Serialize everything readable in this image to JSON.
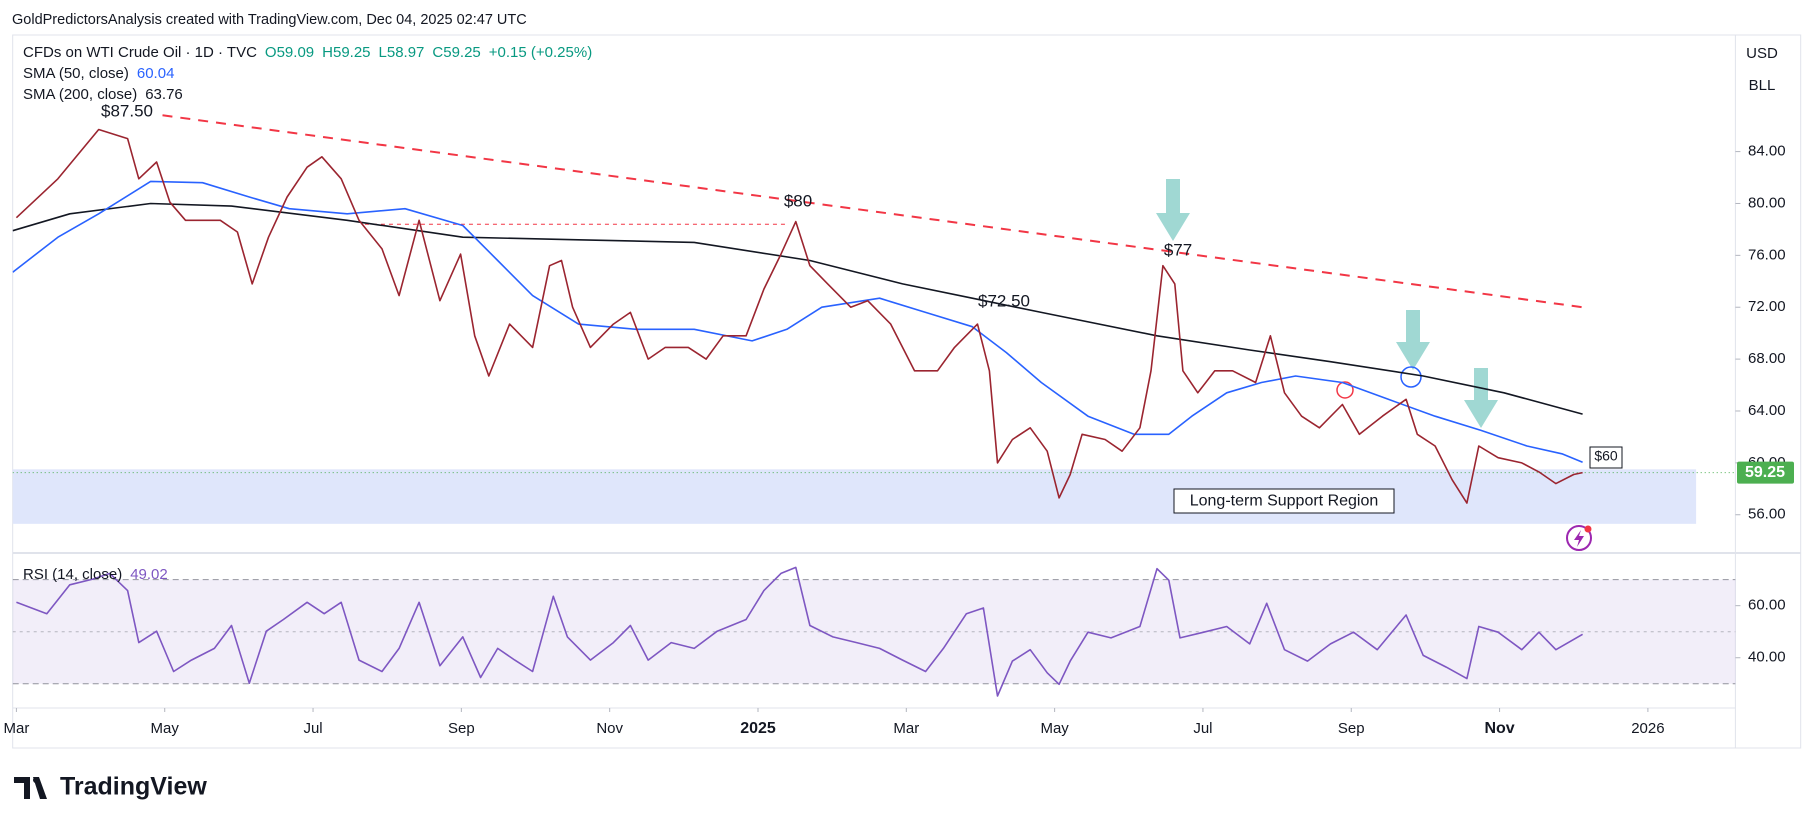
{
  "header": {
    "attribution": "GoldPredictorsAnalysis created with TradingView.com, Dec 04, 2025 02:47 UTC",
    "currency": "USD",
    "unit": "BLL"
  },
  "chart_data": [
    {
      "type": "line",
      "title": "CFDs on WTI Crude Oil · 1D · TVC",
      "legend_items": [
        "O59.09",
        "H59.25",
        "L58.97",
        "C59.25",
        "+0.15 (+0.25%)"
      ],
      "xlim": [
        -0.05,
        23.18
      ],
      "ylim": [
        53.05,
        92.99
      ],
      "yticks": [
        {
          "value": 56,
          "label": "56.00"
        },
        {
          "value": 60,
          "label": "60.00"
        },
        {
          "value": 64,
          "label": "64.00"
        },
        {
          "value": 68,
          "label": "68.00"
        },
        {
          "value": 72,
          "label": "72.00"
        },
        {
          "value": 76,
          "label": "76.00"
        },
        {
          "value": 80,
          "label": "80.00"
        },
        {
          "value": 84,
          "label": "84.00"
        }
      ],
      "last_label": "59.25",
      "last_color": "#4caf50",
      "series": [
        {
          "name": "CFDs on WTI Crude Oil · 1D · TVC",
          "color": "#9b2530",
          "x": [
            0,
            0.56,
            1.11,
            1.5,
            1.65,
            1.89,
            2.07,
            2.28,
            2.75,
            2.98,
            3.18,
            3.4,
            3.65,
            3.92,
            4.12,
            4.38,
            4.62,
            4.93,
            5.16,
            5.43,
            5.71,
            5.99,
            6.18,
            6.37,
            6.65,
            6.96,
            7.19,
            7.35,
            7.5,
            7.74,
            8.05,
            8.28,
            8.52,
            8.75,
            9.06,
            9.3,
            9.53,
            9.84,
            10.08,
            10.31,
            10.51,
            10.7,
            10.94,
            11.25,
            11.48,
            11.79,
            12.11,
            12.42,
            12.65,
            12.96,
            13.12,
            13.23,
            13.43,
            13.67,
            13.9,
            14.06,
            14.21,
            14.37,
            14.68,
            14.91,
            15.15,
            15.3,
            15.46,
            15.62,
            15.73,
            15.93,
            16.16,
            16.4,
            16.71,
            16.91,
            17.1,
            17.33,
            17.57,
            17.88,
            18.11,
            18.42,
            18.74,
            18.89,
            19.13,
            19.36,
            19.56,
            19.72,
            19.98,
            20.3,
            20.53,
            20.76,
            21.0,
            21.12
          ],
          "values": [
            78.9,
            81.9,
            85.7,
            85.0,
            81.9,
            83.2,
            80.1,
            78.7,
            78.7,
            77.8,
            73.8,
            77.4,
            80.5,
            82.8,
            83.6,
            81.9,
            78.7,
            76.5,
            72.9,
            78.7,
            72.5,
            76.1,
            69.8,
            66.7,
            70.7,
            68.9,
            75.2,
            75.6,
            72.0,
            68.9,
            70.7,
            71.6,
            68.0,
            68.9,
            68.9,
            68.0,
            69.8,
            69.8,
            73.4,
            76.1,
            78.6,
            75.2,
            73.8,
            72.0,
            72.5,
            70.7,
            67.1,
            67.1,
            68.9,
            70.7,
            67.1,
            60.0,
            61.8,
            62.7,
            60.9,
            57.3,
            59.1,
            62.2,
            61.8,
            60.9,
            62.7,
            67.1,
            75.2,
            73.8,
            67.1,
            65.4,
            67.1,
            67.1,
            66.2,
            69.8,
            65.4,
            63.6,
            62.7,
            64.5,
            62.2,
            63.6,
            64.9,
            62.2,
            61.3,
            58.7,
            56.9,
            61.3,
            60.4,
            60.0,
            59.3,
            58.4,
            59.1,
            59.25
          ]
        },
        {
          "name": "SMA (50, close)",
          "legend_value": "60.04",
          "color": "#2962ff",
          "x": [
            -0.05,
            0.56,
            1.11,
            1.81,
            2.51,
            3.14,
            3.68,
            4.46,
            5.24,
            6.02,
            6.49,
            6.96,
            7.58,
            8.36,
            9.14,
            9.92,
            10.39,
            10.86,
            11.64,
            12.26,
            12.89,
            13.35,
            13.82,
            14.45,
            15.07,
            15.54,
            15.85,
            16.32,
            16.79,
            17.25,
            17.88,
            18.5,
            19.13,
            19.75,
            20.37,
            20.84,
            21.12
          ],
          "values": [
            74.7,
            77.4,
            79.2,
            81.7,
            81.6,
            80.5,
            79.6,
            79.2,
            79.6,
            78.3,
            75.6,
            72.9,
            70.7,
            70.3,
            70.3,
            69.4,
            70.3,
            72.0,
            72.7,
            71.6,
            70.5,
            68.5,
            66.2,
            63.6,
            62.2,
            62.2,
            63.6,
            65.4,
            66.2,
            66.7,
            66.2,
            64.9,
            63.6,
            62.5,
            61.3,
            60.7,
            60.04
          ]
        },
        {
          "name": "SMA (200, close)",
          "legend_value": "63.76",
          "color": "#131722",
          "x": [
            -0.05,
            0.72,
            1.81,
            2.9,
            4.46,
            6.02,
            7.58,
            9.14,
            10.7,
            11.95,
            12.89,
            13.82,
            15.38,
            16.63,
            17.72,
            18.97,
            20.06,
            21.12
          ],
          "values": [
            77.9,
            79.2,
            80.0,
            79.8,
            78.7,
            77.4,
            77.2,
            77.0,
            75.6,
            73.8,
            72.7,
            71.6,
            69.8,
            68.7,
            67.8,
            66.7,
            65.4,
            63.76
          ]
        }
      ],
      "trendlines": [
        {
          "x": [
            1.97,
            21.12
          ],
          "y": [
            86.8,
            72.0
          ],
          "color": "#f23645"
        },
        {
          "x": [
            4.7,
            10.39
          ],
          "y": [
            78.4,
            78.4
          ],
          "color": "#f23645"
        }
      ],
      "support_region": {
        "label": "Long-term Support Region",
        "x": [
          -0.05,
          22.65
        ],
        "y": [
          55.3,
          59.5
        ],
        "color": "#dfe6fb"
      },
      "annotations": [
        "$87.50",
        "$80",
        "$72.50",
        "$77",
        "$60"
      ]
    },
    {
      "type": "line",
      "title": "RSI (14, close)",
      "legend_value": "49.02",
      "xlim": [
        -0.05,
        23.18
      ],
      "ylim": [
        20,
        80
      ],
      "yticks": [
        {
          "value": 40,
          "label": "40.00"
        },
        {
          "value": 60,
          "label": "60.00"
        }
      ],
      "levels": [
        70,
        50,
        30
      ],
      "xticks": [
        {
          "value": 0,
          "label": "Mar"
        },
        {
          "value": 2,
          "label": "May"
        },
        {
          "value": 4,
          "label": "Jul"
        },
        {
          "value": 6,
          "label": "Sep"
        },
        {
          "value": 8,
          "label": "Nov"
        },
        {
          "value": 10,
          "label": "2025"
        },
        {
          "value": 12,
          "label": "Mar"
        },
        {
          "value": 14,
          "label": "May"
        },
        {
          "value": 16,
          "label": "Jul"
        },
        {
          "value": 18,
          "label": "Sep"
        },
        {
          "value": 20,
          "label": "Nov"
        },
        {
          "value": 22,
          "label": "2026"
        }
      ],
      "series": [
        {
          "color": "#7e57c2",
          "x": [
            0,
            0.41,
            0.72,
            1.03,
            1.26,
            1.5,
            1.65,
            1.89,
            2.12,
            2.36,
            2.67,
            2.9,
            3.14,
            3.37,
            3.6,
            3.92,
            4.15,
            4.38,
            4.62,
            4.93,
            5.16,
            5.43,
            5.71,
            6.02,
            6.26,
            6.49,
            6.72,
            6.96,
            7.24,
            7.43,
            7.74,
            8.05,
            8.28,
            8.52,
            8.83,
            9.14,
            9.45,
            9.84,
            10.08,
            10.31,
            10.51,
            10.7,
            11.01,
            11.33,
            11.64,
            11.95,
            12.26,
            12.5,
            12.81,
            13.04,
            13.23,
            13.43,
            13.67,
            13.9,
            14.06,
            14.21,
            14.45,
            14.76,
            15.15,
            15.38,
            15.54,
            15.69,
            16.01,
            16.32,
            16.63,
            16.86,
            17.1,
            17.41,
            17.72,
            18.03,
            18.35,
            18.74,
            18.97,
            19.28,
            19.56,
            19.72,
            19.98,
            20.3,
            20.53,
            20.76,
            21.12
          ],
          "values": [
            61.3,
            56.9,
            68.0,
            70.2,
            72.4,
            65.8,
            45.8,
            50.2,
            34.7,
            39.1,
            43.6,
            52.4,
            30.2,
            50.2,
            54.7,
            61.3,
            56.9,
            61.3,
            39.1,
            34.7,
            43.6,
            61.3,
            36.9,
            48.0,
            32.4,
            43.6,
            39.1,
            34.7,
            63.6,
            48.0,
            39.1,
            45.8,
            52.4,
            39.1,
            45.8,
            43.6,
            50.2,
            54.7,
            65.8,
            72.4,
            74.7,
            52.4,
            48.0,
            45.8,
            43.6,
            39.1,
            34.7,
            43.6,
            56.9,
            59.1,
            25.3,
            38.7,
            43.1,
            34.2,
            29.8,
            38.7,
            49.8,
            47.6,
            52.0,
            74.2,
            69.8,
            47.6,
            49.8,
            52.0,
            45.3,
            60.9,
            43.1,
            38.7,
            45.3,
            49.8,
            43.1,
            56.4,
            40.9,
            36.4,
            32.0,
            52.0,
            49.8,
            43.1,
            49.8,
            43.1,
            49.02
          ]
        }
      ]
    }
  ],
  "footer": {
    "brand": "TradingView"
  }
}
